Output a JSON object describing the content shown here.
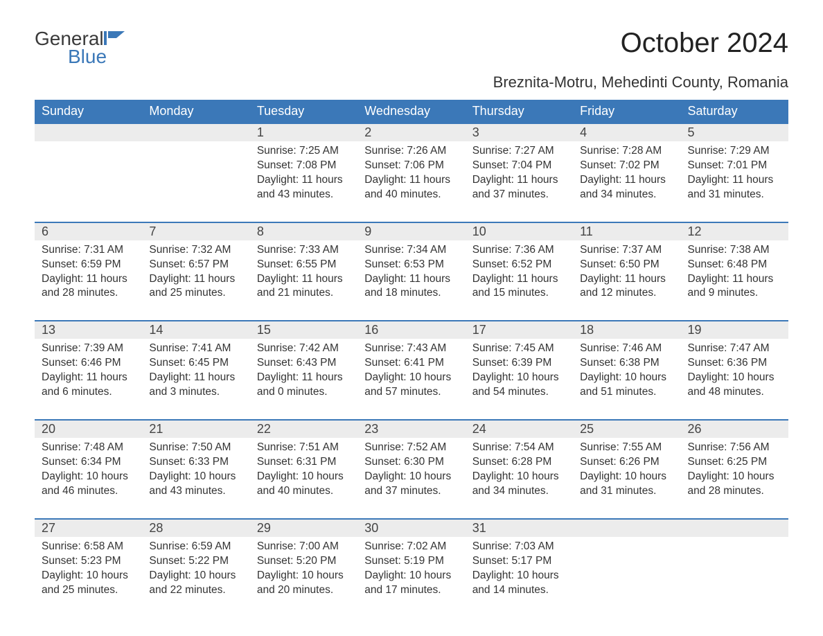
{
  "brand": {
    "word1": "General",
    "word2": "Blue"
  },
  "title": "October 2024",
  "location": "Breznita-Motru, Mehedinti County, Romania",
  "colors": {
    "header_bg": "#3b78b8",
    "header_text": "#ffffff",
    "daynum_bg": "#ececec",
    "border_top": "#3b78b8",
    "body_text": "#333333",
    "page_bg": "#ffffff",
    "logo_blue": "#3b78b8"
  },
  "day_headers": [
    "Sunday",
    "Monday",
    "Tuesday",
    "Wednesday",
    "Thursday",
    "Friday",
    "Saturday"
  ],
  "weeks": [
    [
      null,
      null,
      {
        "n": "1",
        "sr": "7:25 AM",
        "ss": "7:08 PM",
        "dl": "11 hours and 43 minutes."
      },
      {
        "n": "2",
        "sr": "7:26 AM",
        "ss": "7:06 PM",
        "dl": "11 hours and 40 minutes."
      },
      {
        "n": "3",
        "sr": "7:27 AM",
        "ss": "7:04 PM",
        "dl": "11 hours and 37 minutes."
      },
      {
        "n": "4",
        "sr": "7:28 AM",
        "ss": "7:02 PM",
        "dl": "11 hours and 34 minutes."
      },
      {
        "n": "5",
        "sr": "7:29 AM",
        "ss": "7:01 PM",
        "dl": "11 hours and 31 minutes."
      }
    ],
    [
      {
        "n": "6",
        "sr": "7:31 AM",
        "ss": "6:59 PM",
        "dl": "11 hours and 28 minutes."
      },
      {
        "n": "7",
        "sr": "7:32 AM",
        "ss": "6:57 PM",
        "dl": "11 hours and 25 minutes."
      },
      {
        "n": "8",
        "sr": "7:33 AM",
        "ss": "6:55 PM",
        "dl": "11 hours and 21 minutes."
      },
      {
        "n": "9",
        "sr": "7:34 AM",
        "ss": "6:53 PM",
        "dl": "11 hours and 18 minutes."
      },
      {
        "n": "10",
        "sr": "7:36 AM",
        "ss": "6:52 PM",
        "dl": "11 hours and 15 minutes."
      },
      {
        "n": "11",
        "sr": "7:37 AM",
        "ss": "6:50 PM",
        "dl": "11 hours and 12 minutes."
      },
      {
        "n": "12",
        "sr": "7:38 AM",
        "ss": "6:48 PM",
        "dl": "11 hours and 9 minutes."
      }
    ],
    [
      {
        "n": "13",
        "sr": "7:39 AM",
        "ss": "6:46 PM",
        "dl": "11 hours and 6 minutes."
      },
      {
        "n": "14",
        "sr": "7:41 AM",
        "ss": "6:45 PM",
        "dl": "11 hours and 3 minutes."
      },
      {
        "n": "15",
        "sr": "7:42 AM",
        "ss": "6:43 PM",
        "dl": "11 hours and 0 minutes."
      },
      {
        "n": "16",
        "sr": "7:43 AM",
        "ss": "6:41 PM",
        "dl": "10 hours and 57 minutes."
      },
      {
        "n": "17",
        "sr": "7:45 AM",
        "ss": "6:39 PM",
        "dl": "10 hours and 54 minutes."
      },
      {
        "n": "18",
        "sr": "7:46 AM",
        "ss": "6:38 PM",
        "dl": "10 hours and 51 minutes."
      },
      {
        "n": "19",
        "sr": "7:47 AM",
        "ss": "6:36 PM",
        "dl": "10 hours and 48 minutes."
      }
    ],
    [
      {
        "n": "20",
        "sr": "7:48 AM",
        "ss": "6:34 PM",
        "dl": "10 hours and 46 minutes."
      },
      {
        "n": "21",
        "sr": "7:50 AM",
        "ss": "6:33 PM",
        "dl": "10 hours and 43 minutes."
      },
      {
        "n": "22",
        "sr": "7:51 AM",
        "ss": "6:31 PM",
        "dl": "10 hours and 40 minutes."
      },
      {
        "n": "23",
        "sr": "7:52 AM",
        "ss": "6:30 PM",
        "dl": "10 hours and 37 minutes."
      },
      {
        "n": "24",
        "sr": "7:54 AM",
        "ss": "6:28 PM",
        "dl": "10 hours and 34 minutes."
      },
      {
        "n": "25",
        "sr": "7:55 AM",
        "ss": "6:26 PM",
        "dl": "10 hours and 31 minutes."
      },
      {
        "n": "26",
        "sr": "7:56 AM",
        "ss": "6:25 PM",
        "dl": "10 hours and 28 minutes."
      }
    ],
    [
      {
        "n": "27",
        "sr": "6:58 AM",
        "ss": "5:23 PM",
        "dl": "10 hours and 25 minutes."
      },
      {
        "n": "28",
        "sr": "6:59 AM",
        "ss": "5:22 PM",
        "dl": "10 hours and 22 minutes."
      },
      {
        "n": "29",
        "sr": "7:00 AM",
        "ss": "5:20 PM",
        "dl": "10 hours and 20 minutes."
      },
      {
        "n": "30",
        "sr": "7:02 AM",
        "ss": "5:19 PM",
        "dl": "10 hours and 17 minutes."
      },
      {
        "n": "31",
        "sr": "7:03 AM",
        "ss": "5:17 PM",
        "dl": "10 hours and 14 minutes."
      },
      null,
      null
    ]
  ],
  "labels": {
    "sunrise": "Sunrise:",
    "sunset": "Sunset:",
    "daylight": "Daylight:"
  }
}
